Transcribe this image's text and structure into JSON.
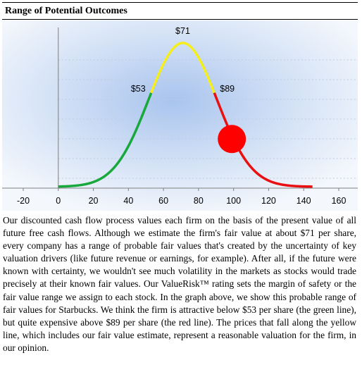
{
  "header": {
    "title": "Range of Potential Outcomes"
  },
  "chart_data": {
    "type": "line",
    "title": "Range of Potential Outcomes",
    "xlim": [
      -20,
      160
    ],
    "xticks": [
      -20,
      0,
      20,
      40,
      60,
      80,
      100,
      120,
      140,
      160
    ],
    "curve": {
      "mean": 71,
      "std": 19.5,
      "x_start": 0,
      "x_end": 145
    },
    "segments": [
      {
        "name": "green",
        "from": 0,
        "to": 53,
        "color": "#19a83b"
      },
      {
        "name": "yellow",
        "from": 53,
        "to": 89,
        "color": "#f5ee1c"
      },
      {
        "name": "red",
        "from": 89,
        "to": 145,
        "color": "#e81010"
      }
    ],
    "labels": [
      {
        "text": "$53",
        "x": 53
      },
      {
        "text": "$71",
        "x": 71
      },
      {
        "text": "$89",
        "x": 89
      }
    ],
    "price_marker": {
      "x": 99,
      "color": "#ff0000"
    },
    "grid": true,
    "legend": "none"
  },
  "body": {
    "paragraph": "Our discounted cash flow process values each firm on the basis of the present value of all future free cash flows. Although we estimate the firm's fair value at about $71 per share, every company has a range of probable fair values that's created by the uncertainty of key valuation drivers (like future revenue or earnings, for example). After all, if the future were known with certainty, we wouldn't see much volatility in the markets as stocks would trade precisely at their known fair values. Our ValueRisk™ rating sets the margin of safety or the fair value range we assign to each stock. In the graph above, we show this probable range of fair values for Starbucks. We think the firm is attractive below $53 per share (the green line), but quite expensive above $89 per share (the red line). The prices that fall along the yellow line, which includes our fair value estimate, represent a reasonable valuation for the firm, in our opinion."
  }
}
